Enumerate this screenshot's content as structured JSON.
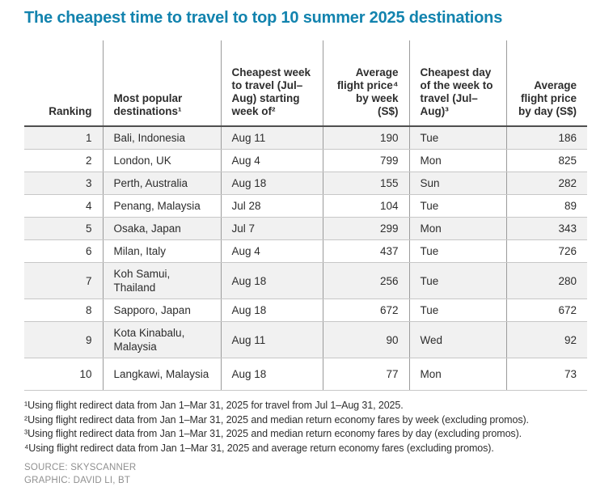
{
  "title": "The cheapest time to travel to top 10 summer 2025 destinations",
  "colors": {
    "title_accent": "#1283ae",
    "row_stripe": "#f1f1f1",
    "header_rule": "#4f4f4f",
    "row_rule": "#c7c7c7",
    "column_rule": "#9b9b9b",
    "body_text": "#2d2d2d",
    "muted_text": "#909090"
  },
  "table": {
    "columns": [
      {
        "label": "Ranking",
        "align": "right"
      },
      {
        "label": "Most popular destinations¹",
        "align": "left"
      },
      {
        "label": "Cheapest week to travel (Jul–Aug) starting week of²",
        "align": "left"
      },
      {
        "label": "Average flight price⁴ by week (S$)",
        "align": "right"
      },
      {
        "label": "Cheapest day of the week to travel (Jul–Aug)³",
        "align": "left"
      },
      {
        "label": "Average flight price by day (S$)",
        "align": "right"
      }
    ],
    "rows": [
      [
        "1",
        "Bali, Indonesia",
        "Aug 11",
        "190",
        "Tue",
        "186"
      ],
      [
        "2",
        "London, UK",
        "Aug 4",
        "799",
        "Mon",
        "825"
      ],
      [
        "3",
        "Perth, Australia",
        "Aug 18",
        "155",
        "Sun",
        "282"
      ],
      [
        "4",
        "Penang, Malaysia",
        "Jul 28",
        "104",
        "Tue",
        "89"
      ],
      [
        "5",
        "Osaka, Japan",
        "Jul 7",
        "299",
        "Mon",
        "343"
      ],
      [
        "6",
        "Milan, Italy",
        "Aug 4",
        "437",
        "Tue",
        "726"
      ],
      [
        "7",
        "Koh Samui, Thailand",
        "Aug 18",
        "256",
        "Tue",
        "280"
      ],
      [
        "8",
        "Sapporo, Japan",
        "Aug 18",
        "672",
        "Tue",
        "672"
      ],
      [
        "9",
        "Kota Kinabalu, Malaysia",
        "Aug 11",
        "90",
        "Wed",
        "92"
      ],
      [
        "10",
        "Langkawi, Malaysia",
        "Aug 18",
        "77",
        "Mon",
        "73"
      ]
    ]
  },
  "footnotes": [
    "¹Using flight redirect data from Jan 1–Mar 31, 2025 for travel from Jul 1–Aug 31, 2025.",
    "²Using flight redirect data from Jan 1–Mar 31, 2025 and median return economy fares by week (excluding promos).",
    "³Using flight redirect data from Jan 1–Mar 31, 2025 and median return economy fares by day (excluding promos).",
    "⁴Using flight redirect data from Jan 1–Mar 31, 2025 and average return economy fares (excluding promos)."
  ],
  "source": "SOURCE: SKYSCANNER",
  "credit": "GRAPHIC: DAVID LI, BT",
  "chart_data": {
    "type": "table",
    "title": "The cheapest time to travel to top 10 summer 2025 destinations",
    "columns": [
      "Ranking",
      "Most popular destinations",
      "Cheapest week to travel (Jul–Aug) starting week of",
      "Average flight price by week (S$)",
      "Cheapest day of the week to travel (Jul–Aug)",
      "Average flight price by day (S$)"
    ],
    "rows": [
      [
        1,
        "Bali, Indonesia",
        "Aug 11",
        190,
        "Tue",
        186
      ],
      [
        2,
        "London, UK",
        "Aug 4",
        799,
        "Mon",
        825
      ],
      [
        3,
        "Perth, Australia",
        "Aug 18",
        155,
        "Sun",
        282
      ],
      [
        4,
        "Penang, Malaysia",
        "Jul 28",
        104,
        "Tue",
        89
      ],
      [
        5,
        "Osaka, Japan",
        "Jul 7",
        299,
        "Mon",
        343
      ],
      [
        6,
        "Milan, Italy",
        "Aug 4",
        437,
        "Tue",
        726
      ],
      [
        7,
        "Koh Samui, Thailand",
        "Aug 18",
        256,
        "Tue",
        280
      ],
      [
        8,
        "Sapporo, Japan",
        "Aug 18",
        672,
        "Tue",
        672
      ],
      [
        9,
        "Kota Kinabalu, Malaysia",
        "Aug 11",
        90,
        "Wed",
        92
      ],
      [
        10,
        "Langkawi, Malaysia",
        "Aug 18",
        77,
        "Mon",
        73
      ]
    ]
  }
}
